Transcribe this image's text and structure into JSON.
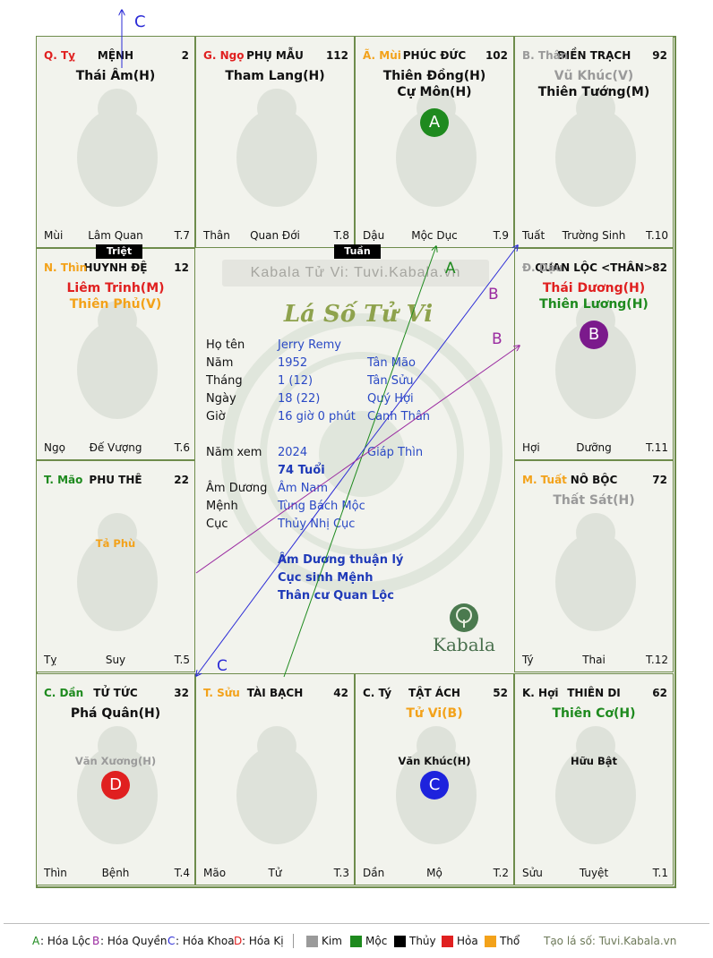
{
  "colors": {
    "green": "#1e8a1e",
    "purple": "#9a2aa0",
    "blue": "#2b2bd6",
    "red": "#e02020",
    "orange": "#f3a21a",
    "gray": "#9a9a9a",
    "border": "#6e8c4c",
    "info": "#2a49c5"
  },
  "arrow_labels": {
    "top_c": "C",
    "a": "A",
    "b1": "B",
    "b2": "B",
    "c2": "C"
  },
  "cells": [
    {
      "branch": "Q. Tỵ",
      "branch_color": "#e02020",
      "palace": "MỆNH",
      "number": "2",
      "stars": [
        {
          "t": "Thái Âm(H)",
          "c": "#111"
        }
      ],
      "minor": [],
      "life_stage": "Lâm Quan",
      "left_label": "Mùi",
      "t_code": "T.7",
      "zodiac": "snake-icon"
    },
    {
      "branch": "G. Ngọ",
      "branch_color": "#e02020",
      "palace": "PHỤ MẪU",
      "number": "112",
      "stars": [
        {
          "t": "Tham Lang(H)",
          "c": "#111"
        }
      ],
      "minor": [],
      "life_stage": "Quan Đới",
      "left_label": "Thân",
      "t_code": "T.8",
      "zodiac": "horse-icon"
    },
    {
      "branch": "Ã. Mùi",
      "branch_color": "#f3a21a",
      "palace": "PHÚC ĐỨC",
      "number": "102",
      "stars": [
        {
          "t": "Thiên Đồng(H)",
          "c": "#111"
        },
        {
          "t": "Cự Môn(H)",
          "c": "#111"
        }
      ],
      "minor": [],
      "life_stage": "Mộc Dục",
      "left_label": "Dậu",
      "t_code": "T.9",
      "zodiac": "goat-icon",
      "badge": {
        "letter": "A",
        "color": "#1e8a1e"
      }
    },
    {
      "branch": "B. Thân",
      "branch_color": "#9a9a9a",
      "palace": "ĐIỀN TRẠCH",
      "number": "92",
      "stars": [
        {
          "t": "Vũ Khúc(V)",
          "c": "#9a9a9a"
        },
        {
          "t": "Thiên Tướng(M)",
          "c": "#111"
        }
      ],
      "minor": [],
      "life_stage": "Trường Sinh",
      "left_label": "Tuất",
      "t_code": "T.10",
      "zodiac": "monkey-icon"
    },
    {
      "branch": "N. Thìn",
      "branch_color": "#f3a21a",
      "palace": "HUYNH ĐỆ",
      "number": "12",
      "stars": [
        {
          "t": "Liêm Trinh(M)",
          "c": "#e02020"
        },
        {
          "t": "Thiên Phủ(V)",
          "c": "#f3a21a"
        }
      ],
      "minor": [],
      "life_stage": "Đế Vượng",
      "left_label": "Ngọ",
      "t_code": "T.6",
      "zodiac": "dragon-icon"
    },
    {
      "branch": "Đ. Dậu",
      "branch_color": "#9a9a9a",
      "palace": "QUAN LỘC <THÂN>",
      "number": "82",
      "stars": [
        {
          "t": "Thái Dương(H)",
          "c": "#e02020"
        },
        {
          "t": "Thiên Lương(H)",
          "c": "#1e8a1e"
        }
      ],
      "minor": [],
      "life_stage": "Dưỡng",
      "left_label": "Hợi",
      "t_code": "T.11",
      "zodiac": "rooster-icon",
      "badge": {
        "letter": "B",
        "color": "#7b1a8c"
      }
    },
    {
      "branch": "T. Mão",
      "branch_color": "#1e8a1e",
      "palace": "PHU THÊ",
      "number": "22",
      "stars": [],
      "minor": [
        {
          "t": "Tả Phù",
          "c": "#f3a21a"
        }
      ],
      "life_stage": "Suy",
      "left_label": "Tỵ",
      "t_code": "T.5",
      "zodiac": "cat-icon"
    },
    {
      "branch": "M. Tuất",
      "branch_color": "#f3a21a",
      "palace": "NÔ BỘC",
      "number": "72",
      "stars": [
        {
          "t": "Thất Sát(H)",
          "c": "#9a9a9a"
        }
      ],
      "minor": [],
      "life_stage": "Thai",
      "left_label": "Tý",
      "t_code": "T.12",
      "zodiac": "dog-icon"
    },
    {
      "branch": "C. Dần",
      "branch_color": "#1e8a1e",
      "palace": "TỬ TỨC",
      "number": "32",
      "stars": [
        {
          "t": "Phá Quân(H)",
          "c": "#111"
        }
      ],
      "minor": [
        {
          "t": "Văn Xương(H)",
          "c": "#9a9a9a"
        }
      ],
      "life_stage": "Bệnh",
      "left_label": "Thìn",
      "t_code": "T.4",
      "zodiac": "tiger-icon",
      "badge": {
        "letter": "D",
        "color": "#e02020"
      }
    },
    {
      "branch": "T. Sửu",
      "branch_color": "#f3a21a",
      "palace": "TÀI BẠCH",
      "number": "42",
      "stars": [],
      "minor": [],
      "life_stage": "Tử",
      "left_label": "Mão",
      "t_code": "T.3",
      "zodiac": "ox-icon"
    },
    {
      "branch": "C. Tý",
      "branch_color": "#111",
      "palace": "TẬT ÁCH",
      "number": "52",
      "stars": [
        {
          "t": "Tử Vi(B)",
          "c": "#f3a21a"
        }
      ],
      "minor": [
        {
          "t": "Văn Khúc(H)",
          "c": "#111"
        }
      ],
      "life_stage": "Mộ",
      "left_label": "Dần",
      "t_code": "T.2",
      "zodiac": "rat-icon",
      "badge": {
        "letter": "C",
        "color": "#1d23dd"
      }
    },
    {
      "branch": "K. Hợi",
      "branch_color": "#111",
      "palace": "THIÊN DI",
      "number": "62",
      "stars": [
        {
          "t": "Thiên Cơ(H)",
          "c": "#1e8a1e"
        }
      ],
      "minor": [
        {
          "t": "Hữu Bật",
          "c": "#111"
        }
      ],
      "life_stage": "Tuyệt",
      "left_label": "Sửu",
      "t_code": "T.1",
      "zodiac": "pig-icon"
    }
  ],
  "tags": {
    "triet": "Triệt",
    "tuan": "Tuần"
  },
  "center": {
    "watermark": "Kabala Tử Vi: Tuvi.Kabala.vn",
    "title": "Lá Số Tử Vi",
    "rows": [
      {
        "label": "Họ tên",
        "v1": "Jerry Remy",
        "v2": ""
      },
      {
        "label": "Năm",
        "v1": "1952",
        "v2": "Tân Mão"
      },
      {
        "label": "Tháng",
        "v1": "1  (12)",
        "v2": "Tân Sửu"
      },
      {
        "label": "Ngày",
        "v1": "18  (22)",
        "v2": "Quý Hợi"
      },
      {
        "label": "Giờ",
        "v1": "16 giờ 0 phút",
        "v2": "Canh Thân"
      },
      {
        "label": "Năm xem",
        "v1": "2024",
        "v2": "Giáp Thìn"
      },
      {
        "label": "",
        "v1": "74 Tuổi",
        "v2": ""
      },
      {
        "label": "Âm Dương",
        "v1": "Âm Nam",
        "v2": ""
      },
      {
        "label": "Mệnh",
        "v1": "Tùng Bách Mộc",
        "v2": ""
      },
      {
        "label": "Cục",
        "v1": "Thủy Nhị Cục",
        "v2": ""
      }
    ],
    "notes": [
      "Âm Dương thuận lý",
      "Cục sinh Mệnh",
      "Thân cư Quan Lộc"
    ],
    "brand": "Kabala"
  },
  "legend": {
    "a_key": "A",
    "a_text": ": Hóa Lộc",
    "b_key": "B",
    "b_text": ": Hóa Quyền",
    "c_key": "C",
    "c_text": ": Hóa Khoa",
    "d_key": "D",
    "d_text": ": Hóa Kị",
    "elements": [
      {
        "name": "Kim",
        "color": "#9a9a9a"
      },
      {
        "name": "Mộc",
        "color": "#1e8a1e"
      },
      {
        "name": "Thủy",
        "color": "#000000"
      },
      {
        "name": "Hỏa",
        "color": "#e02020"
      },
      {
        "name": "Thổ",
        "color": "#f3a21a"
      }
    ],
    "credit": "Tạo lá số: Tuvi.Kabala.vn"
  }
}
